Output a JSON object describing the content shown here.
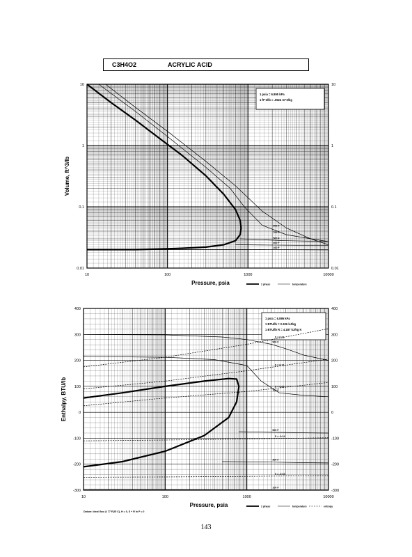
{
  "header": {
    "formula": "C3H4O2",
    "name": "ACRYLIC ACID"
  },
  "page_number": "143",
  "chart_data": [
    {
      "type": "line",
      "xlabel": "Pressure,  psia",
      "ylabel": "Volume, ft^3/lb",
      "xscale": "log",
      "yscale": "log",
      "xlim": [
        10,
        10000
      ],
      "ylim": [
        0.01,
        10
      ],
      "xticks": [
        "10",
        "100",
        "1000",
        "10000"
      ],
      "yticks": [
        "0.01",
        "0.1",
        "1",
        "10"
      ],
      "grid": true,
      "notes": [
        "1 psia = 6.895 kPa",
        "1 ft^3/lb = .0624 m^3/kg"
      ],
      "legend": [
        "2 phase",
        "temperature"
      ],
      "legend_position": "bottom-right",
      "series": [
        {
          "name": "2 phase",
          "x": [
            10,
            20,
            40,
            80,
            150,
            300,
            500,
            700,
            800,
            820,
            800,
            700,
            500,
            300,
            150,
            80,
            40,
            20,
            10
          ],
          "y": [
            10,
            5,
            2.6,
            1.3,
            0.7,
            0.32,
            0.16,
            0.09,
            0.06,
            0.045,
            0.035,
            0.028,
            0.024,
            0.022,
            0.021,
            0.0205,
            0.02,
            0.02,
            0.02
          ]
        },
        {
          "name": "900 F",
          "label": "900 F",
          "x": [
            17,
            40,
            100,
            300,
            700,
            1500,
            3000,
            6000,
            10000
          ],
          "y": [
            10,
            4.2,
            1.7,
            0.55,
            0.22,
            0.085,
            0.045,
            0.03,
            0.024
          ]
        },
        {
          "name": "700 F",
          "label": "700 F",
          "x": [
            14,
            40,
            100,
            300,
            600,
            900,
            1500,
            3000,
            10000
          ],
          "y": [
            10,
            3.6,
            1.4,
            0.44,
            0.2,
            0.1,
            0.05,
            0.035,
            0.027
          ]
        },
        {
          "name": "500 F",
          "label": "500 F",
          "x": [
            800,
            1500,
            3000,
            10000
          ],
          "y": [
            0.03,
            0.029,
            0.028,
            0.027
          ]
        },
        {
          "name": "300 F",
          "label": "300 F",
          "x": [
            700,
            1500,
            3000,
            10000
          ],
          "y": [
            0.024,
            0.0238,
            0.0236,
            0.0233
          ]
        },
        {
          "name": "100 F",
          "label": "100 F",
          "x": [
            10,
            100,
            1000,
            10000
          ],
          "y": [
            0.02,
            0.02,
            0.02,
            0.0198
          ]
        }
      ]
    },
    {
      "type": "line",
      "xlabel": "Pressure,  psia",
      "ylabel": "Enthalpy, BTU/lb",
      "xscale": "log",
      "xlim": [
        10,
        10000
      ],
      "ylim": [
        -300,
        400
      ],
      "xticks": [
        "10",
        "100",
        "1000",
        "10000"
      ],
      "yticks": [
        "400",
        "300",
        "200",
        "100",
        "0",
        "-100",
        "-200",
        "-300"
      ],
      "grid": true,
      "notes": [
        "1 psia = 6.895 kPa",
        "1 BTU/lb = 2.326 kJ/kg",
        "1 BTU/lb R = 4.187 kJ/kg K"
      ],
      "legend": [
        "2 phase",
        "temperature",
        "entropy"
      ],
      "legend_position": "bottom-right",
      "footnote": "Datum: Ideal Gas @ 77 F(25 C), H = 0,  S + R ln P = 0",
      "series": [
        {
          "name": "2 phase",
          "x": [
            10,
            30,
            100,
            300,
            600,
            750,
            800,
            750,
            600,
            300,
            100,
            30,
            10
          ],
          "y": [
            55,
            75,
            100,
            120,
            130,
            128,
            100,
            40,
            -20,
            -90,
            -150,
            -190,
            -210
          ]
        },
        {
          "name": "900 F",
          "label": "900 F",
          "x": [
            10,
            100,
            500,
            1000,
            2000,
            3000,
            5000,
            10000
          ],
          "y": [
            300,
            298,
            290,
            280,
            262,
            245,
            220,
            200
          ]
        },
        {
          "name": "700 F",
          "label": "700 F",
          "x": [
            10,
            100,
            400,
            1000,
            1500,
            2500,
            5000,
            10000
          ],
          "y": [
            215,
            212,
            203,
            180,
            120,
            75,
            65,
            60
          ]
        },
        {
          "name": "500 F",
          "label": "500 F",
          "x": [
            800,
            2000,
            5000,
            10000
          ],
          "y": [
            -75,
            -77,
            -79,
            -80
          ]
        },
        {
          "name": "300 F",
          "label": "300 F",
          "x": [
            500,
            2000,
            5000,
            10000
          ],
          "y": [
            -190,
            -192,
            -194,
            -195
          ]
        },
        {
          "name": "100 F",
          "label": "100 F",
          "x": [
            10,
            1000,
            10000
          ],
          "y": [
            -297,
            -298,
            -299
          ]
        },
        {
          "name": "S=0.21",
          "label": "S = 0.21",
          "x": [
            10,
            100,
            1000,
            10000
          ],
          "y": [
            175,
            212,
            262,
            322
          ]
        },
        {
          "name": "S=0.12",
          "label": "S = 0.12",
          "x": [
            10,
            100,
            1000,
            10000
          ],
          "y": [
            90,
            120,
            160,
            205
          ]
        },
        {
          "name": "S=0.05",
          "label": "S = 0.05",
          "x": [
            10,
            100,
            1000,
            10000
          ],
          "y": [
            25,
            55,
            80,
            115
          ]
        },
        {
          "name": "S=-0.14",
          "label": "S = -0.14",
          "x": [
            10,
            100,
            1000,
            10000
          ],
          "y": [
            -110,
            -107,
            -103,
            -98
          ]
        },
        {
          "name": "S=-0.33",
          "label": "S = -0.33",
          "x": [
            10,
            100,
            1000,
            10000
          ],
          "y": [
            -250,
            -249,
            -247,
            -244
          ]
        }
      ]
    }
  ]
}
